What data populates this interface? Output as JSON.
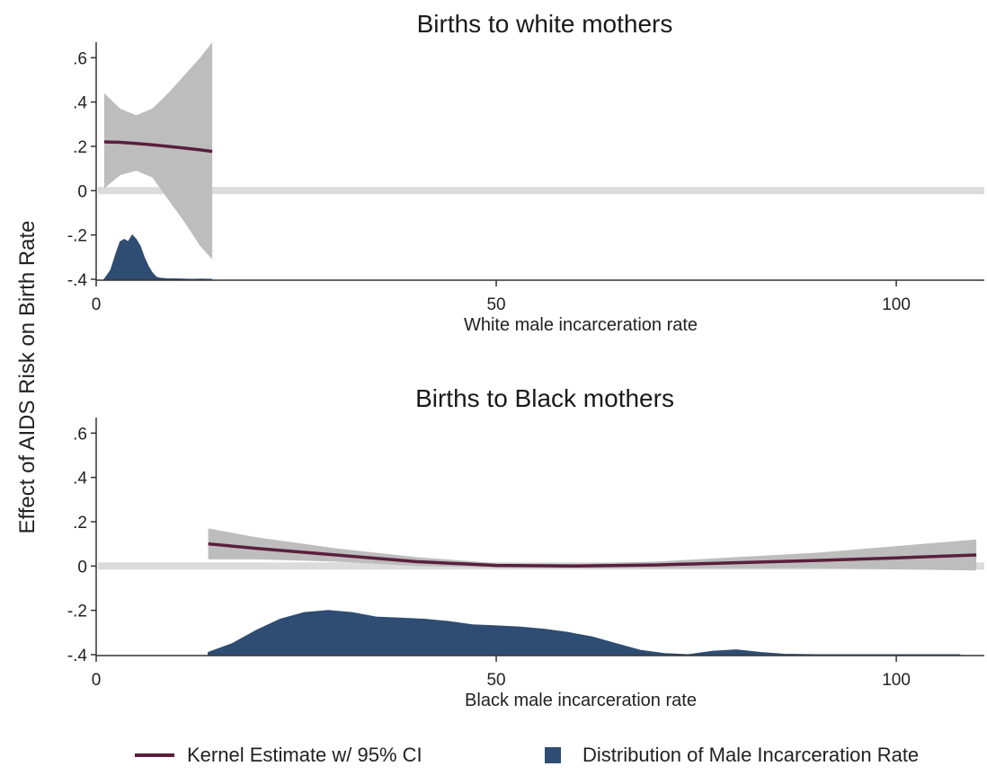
{
  "y_axis_label": "Effect of AIDS Risk on Birth Rate",
  "colors": {
    "kernel_line": "#5a1f3c",
    "ci_band": "#bdbdbd",
    "distribution": "#2f4d73",
    "zero_line": "#dcdcdc"
  },
  "legend": {
    "kernel": "Kernel Estimate w/ 95% CI",
    "distribution": "Distribution of Male Incarceration Rate"
  },
  "chart_data": [
    {
      "type": "area",
      "title": "Births to white mothers",
      "xlabel": "White male incarceration rate",
      "ylabel": "Effect of AIDS Risk on Birth Rate",
      "xlim": [
        0,
        111
      ],
      "ylim": [
        -0.4,
        0.67
      ],
      "x_ticks": [
        0,
        50,
        100
      ],
      "y_ticks": [
        -0.4,
        -0.2,
        0,
        0.2,
        0.4,
        0.6
      ],
      "x_tick_labels": [
        "0",
        "50",
        "100"
      ],
      "y_tick_labels": [
        "-.4",
        "-.2",
        "0",
        ".2",
        ".4",
        ".6"
      ],
      "zero_line": 0,
      "series": [
        {
          "name": "Kernel Estimate w/ 95% CI",
          "kind": "line_ci",
          "x": [
            1,
            3,
            5,
            7,
            9,
            11,
            13,
            14.5
          ],
          "y": [
            0.22,
            0.218,
            0.213,
            0.207,
            0.2,
            0.192,
            0.184,
            0.177
          ],
          "upper": [
            0.44,
            0.37,
            0.34,
            0.37,
            0.44,
            0.52,
            0.6,
            0.67
          ],
          "lower": [
            0.01,
            0.07,
            0.09,
            0.06,
            -0.04,
            -0.14,
            -0.25,
            -0.31
          ]
        },
        {
          "name": "Distribution of Male Incarceration Rate",
          "kind": "density",
          "x": [
            1,
            1.8,
            2.5,
            3,
            3.5,
            4,
            4.5,
            5,
            5.5,
            6,
            6.5,
            7,
            7.5,
            8,
            9,
            10,
            11,
            12,
            13,
            14.5
          ],
          "y": [
            -0.4,
            -0.36,
            -0.28,
            -0.23,
            -0.22,
            -0.23,
            -0.2,
            -0.22,
            -0.25,
            -0.3,
            -0.34,
            -0.37,
            -0.39,
            -0.395,
            -0.398,
            -0.398,
            -0.399,
            -0.4,
            -0.399,
            -0.4
          ]
        }
      ]
    },
    {
      "type": "area",
      "title": "Births to Black mothers",
      "xlabel": "Black male incarceration rate",
      "ylabel": "Effect of AIDS Risk on Birth Rate",
      "xlim": [
        0,
        111
      ],
      "ylim": [
        -0.4,
        0.67
      ],
      "x_ticks": [
        0,
        50,
        100
      ],
      "y_ticks": [
        -0.4,
        -0.2,
        0,
        0.2,
        0.4,
        0.6
      ],
      "x_tick_labels": [
        "0",
        "50",
        "100"
      ],
      "y_tick_labels": [
        "-.4",
        "-.2",
        "0",
        ".2",
        ".4",
        ".6"
      ],
      "zero_line": 0,
      "series": [
        {
          "name": "Kernel Estimate w/ 95% CI",
          "kind": "line_ci",
          "x": [
            14,
            20,
            30,
            40,
            50,
            60,
            70,
            80,
            90,
            100,
            110
          ],
          "y": [
            0.1,
            0.08,
            0.05,
            0.02,
            0.003,
            0,
            0.005,
            0.015,
            0.025,
            0.037,
            0.05
          ],
          "upper": [
            0.17,
            0.13,
            0.08,
            0.04,
            0.013,
            0.01,
            0.02,
            0.04,
            0.06,
            0.09,
            0.12
          ],
          "lower": [
            0.03,
            0.03,
            0.02,
            0.0,
            -0.007,
            -0.01,
            -0.01,
            -0.01,
            -0.01,
            -0.015,
            -0.02
          ]
        },
        {
          "name": "Distribution of Male Incarceration Rate",
          "kind": "density",
          "x": [
            14,
            17,
            20,
            23,
            26,
            29,
            32,
            35,
            38,
            41,
            44,
            47,
            50,
            53,
            56,
            59,
            62,
            65,
            68,
            71,
            74,
            77,
            80,
            83,
            86,
            90,
            95,
            100,
            105,
            108
          ],
          "y": [
            -0.39,
            -0.35,
            -0.29,
            -0.24,
            -0.21,
            -0.2,
            -0.21,
            -0.23,
            -0.235,
            -0.24,
            -0.25,
            -0.265,
            -0.27,
            -0.275,
            -0.285,
            -0.3,
            -0.32,
            -0.35,
            -0.38,
            -0.395,
            -0.4,
            -0.385,
            -0.378,
            -0.39,
            -0.398,
            -0.4,
            -0.4,
            -0.4,
            -0.4,
            -0.4
          ]
        }
      ]
    }
  ]
}
